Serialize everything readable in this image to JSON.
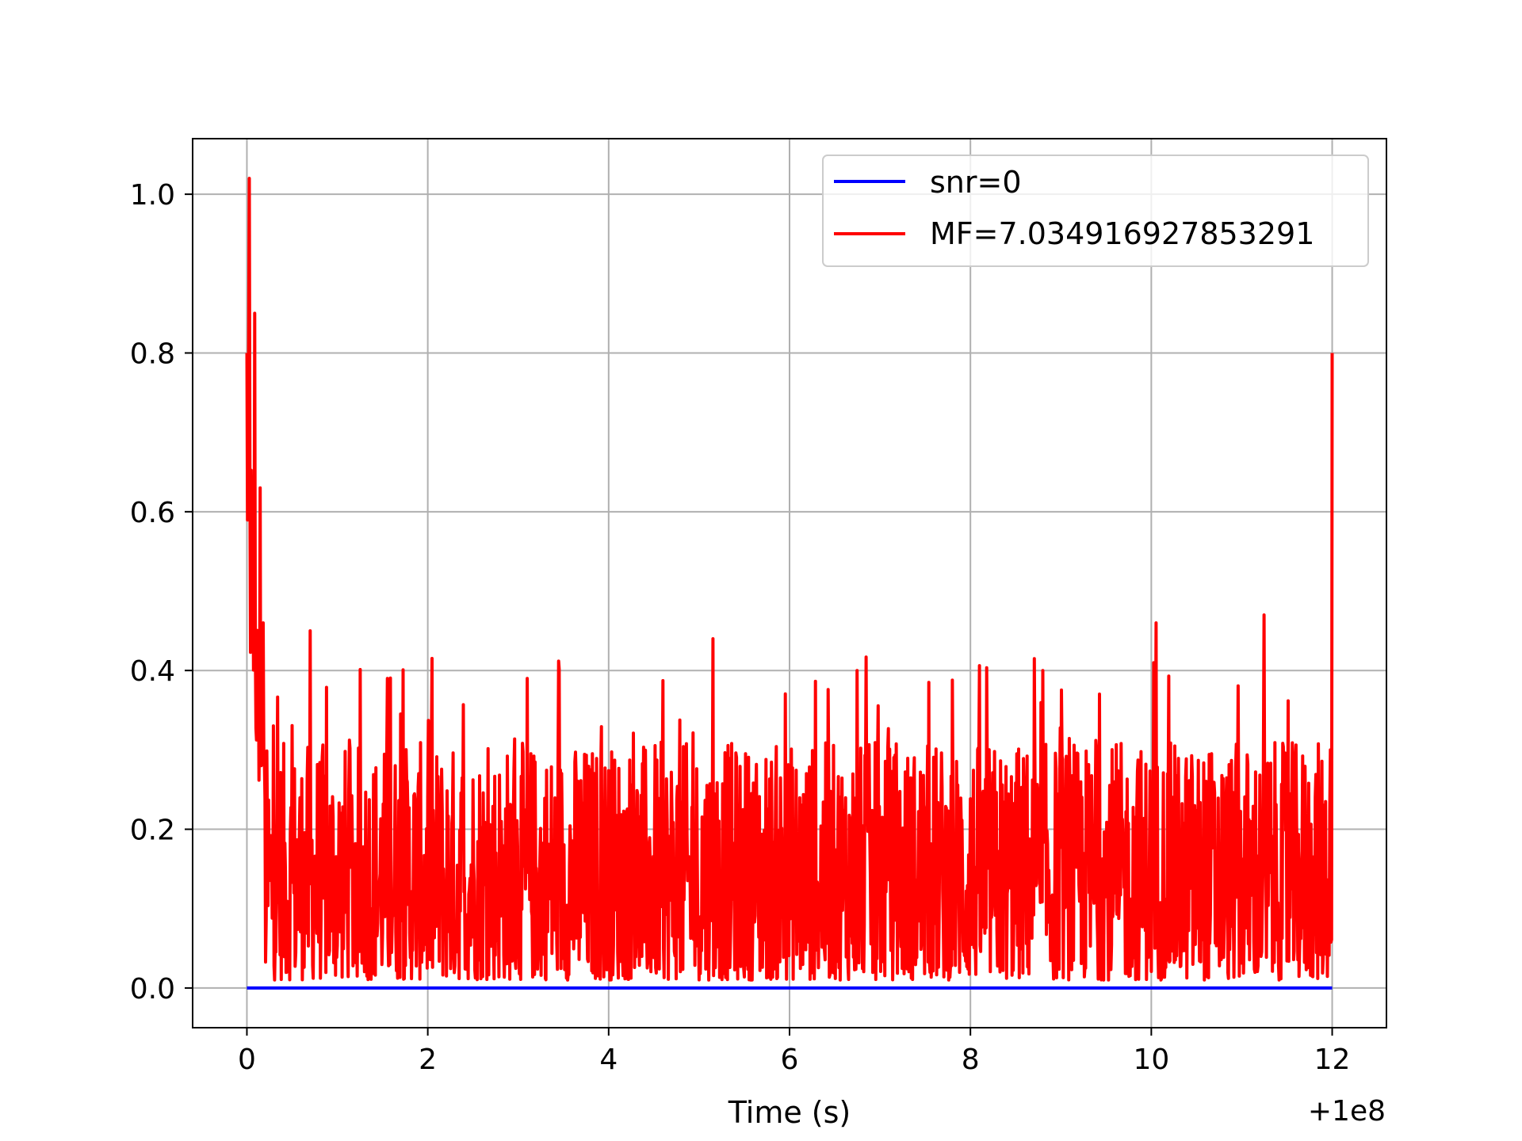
{
  "chart_data": {
    "type": "line",
    "xlabel": "Time (s)",
    "ylabel": "",
    "x_offset_label": "+1e8",
    "xlim": [
      -0.6,
      12.6
    ],
    "ylim": [
      -0.05,
      1.07
    ],
    "grid": true,
    "legend_position": "top-right",
    "x_ticks": [
      0,
      2,
      4,
      6,
      8,
      10,
      12
    ],
    "x_tick_labels": [
      "0",
      "2",
      "4",
      "6",
      "8",
      "10",
      "12"
    ],
    "y_ticks": [
      0.0,
      0.2,
      0.4,
      0.6,
      0.8,
      1.0
    ],
    "y_tick_labels": [
      "0.0",
      "0.2",
      "0.4",
      "0.6",
      "0.8",
      "1.0"
    ],
    "series": [
      {
        "name": "snr=0",
        "color": "#0000ff",
        "x": [
          0,
          12
        ],
        "y": [
          0,
          0
        ]
      },
      {
        "name": "MF=7.034916927853291",
        "color": "#ff0000",
        "x": [
          0,
          0.03,
          0.06,
          0.09,
          0.12,
          0.15,
          0.18,
          0.7,
          1.55,
          3.1,
          5.15,
          6.75,
          8.8,
          10.05,
          11.25,
          11.98,
          12.0
        ],
        "y": [
          0.8,
          1.02,
          0.64,
          0.85,
          0.44,
          0.63,
          0.46,
          0.45,
          0.39,
          0.39,
          0.44,
          0.4,
          0.4,
          0.46,
          0.47,
          0.3,
          0.8
        ],
        "noise_band": [
          0.0,
          0.35
        ]
      }
    ]
  }
}
